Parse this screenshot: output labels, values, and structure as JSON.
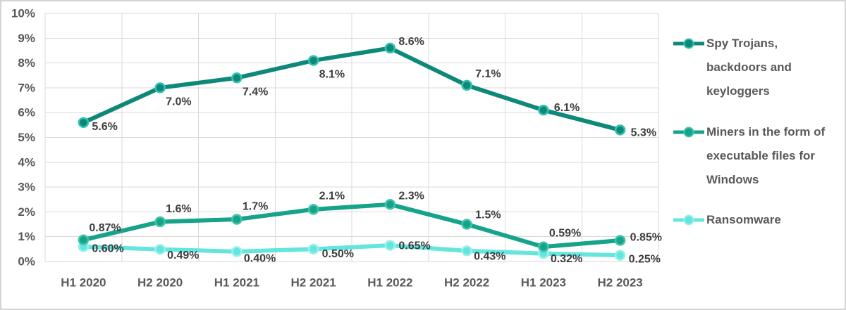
{
  "chart_data": {
    "type": "line",
    "title": "",
    "xlabel": "",
    "ylabel": "",
    "categories": [
      "H1 2020",
      "H2 2020",
      "H1 2021",
      "H2 2021",
      "H1 2022",
      "H2 2022",
      "H1 2023",
      "H2 2023"
    ],
    "y_axis": {
      "min": 0,
      "max": 10,
      "step": 1,
      "tick_labels": [
        "0%",
        "1%",
        "2%",
        "3%",
        "4%",
        "5%",
        "6%",
        "7%",
        "8%",
        "9%",
        "10%"
      ]
    },
    "grid": true,
    "legend_position": "right",
    "series": [
      {
        "id": "spy-trojans",
        "name": "Spy Trojans, backdoors and keyloggers",
        "legend_lines": [
          "Spy Trojans,",
          "backdoors and",
          "keyloggers"
        ],
        "color": "#0E8878",
        "marker_ring_color": "#35C2B2",
        "values": [
          5.6,
          7.0,
          7.4,
          8.1,
          8.6,
          7.1,
          6.1,
          5.3
        ],
        "data_labels": [
          "5.6%",
          "7.0%",
          "7.4%",
          "8.1%",
          "8.6%",
          "7.1%",
          "6.1%",
          "5.3%"
        ],
        "label_offsets": [
          [
            12,
            6
          ],
          [
            8,
            20
          ],
          [
            8,
            20
          ],
          [
            8,
            20
          ],
          [
            12,
            -9
          ],
          [
            12,
            -16
          ],
          [
            15,
            -3
          ],
          [
            15,
            4
          ]
        ]
      },
      {
        "id": "miners",
        "name": "Miners in the form of executable files for Windows",
        "legend_lines": [
          "Miners in the form of",
          "executable files for",
          "Windows"
        ],
        "color": "#16A38A",
        "marker_ring_color": "#40C5AC",
        "values": [
          0.87,
          1.6,
          1.7,
          2.1,
          2.3,
          1.5,
          0.59,
          0.85
        ],
        "data_labels": [
          "0.87%",
          "1.6%",
          "1.7%",
          "2.1%",
          "2.3%",
          "1.5%",
          "0.59%",
          "0.85%"
        ],
        "label_offsets": [
          [
            8,
            -17
          ],
          [
            8,
            -18
          ],
          [
            8,
            -18
          ],
          [
            8,
            -19
          ],
          [
            12,
            -12
          ],
          [
            12,
            -13
          ],
          [
            8,
            -19
          ],
          [
            14,
            -4
          ]
        ]
      },
      {
        "id": "ransomware",
        "name": "Ransomware",
        "legend_lines": [
          "Ransomware"
        ],
        "color": "#64E6DE",
        "marker_ring_color": "#9BF0EA",
        "values": [
          0.6,
          0.49,
          0.4,
          0.5,
          0.65,
          0.43,
          0.32,
          0.25
        ],
        "data_labels": [
          "0.60%",
          "0.49%",
          "0.40%",
          "0.50%",
          "0.65%",
          "0.43%",
          "0.32%",
          "0.25%"
        ],
        "label_offsets": [
          [
            12,
            3
          ],
          [
            10,
            9
          ],
          [
            10,
            10
          ],
          [
            12,
            7
          ],
          [
            12,
            1
          ],
          [
            10,
            8
          ],
          [
            10,
            8
          ],
          [
            12,
            6
          ]
        ]
      }
    ],
    "colors": {
      "background": "#FFFFFF",
      "grid": "#D9D9D9",
      "axis_label": "#595959",
      "data_label": "#3D3D3D",
      "legend_text": "#595959",
      "frame_border": "#D2D4D6"
    }
  }
}
